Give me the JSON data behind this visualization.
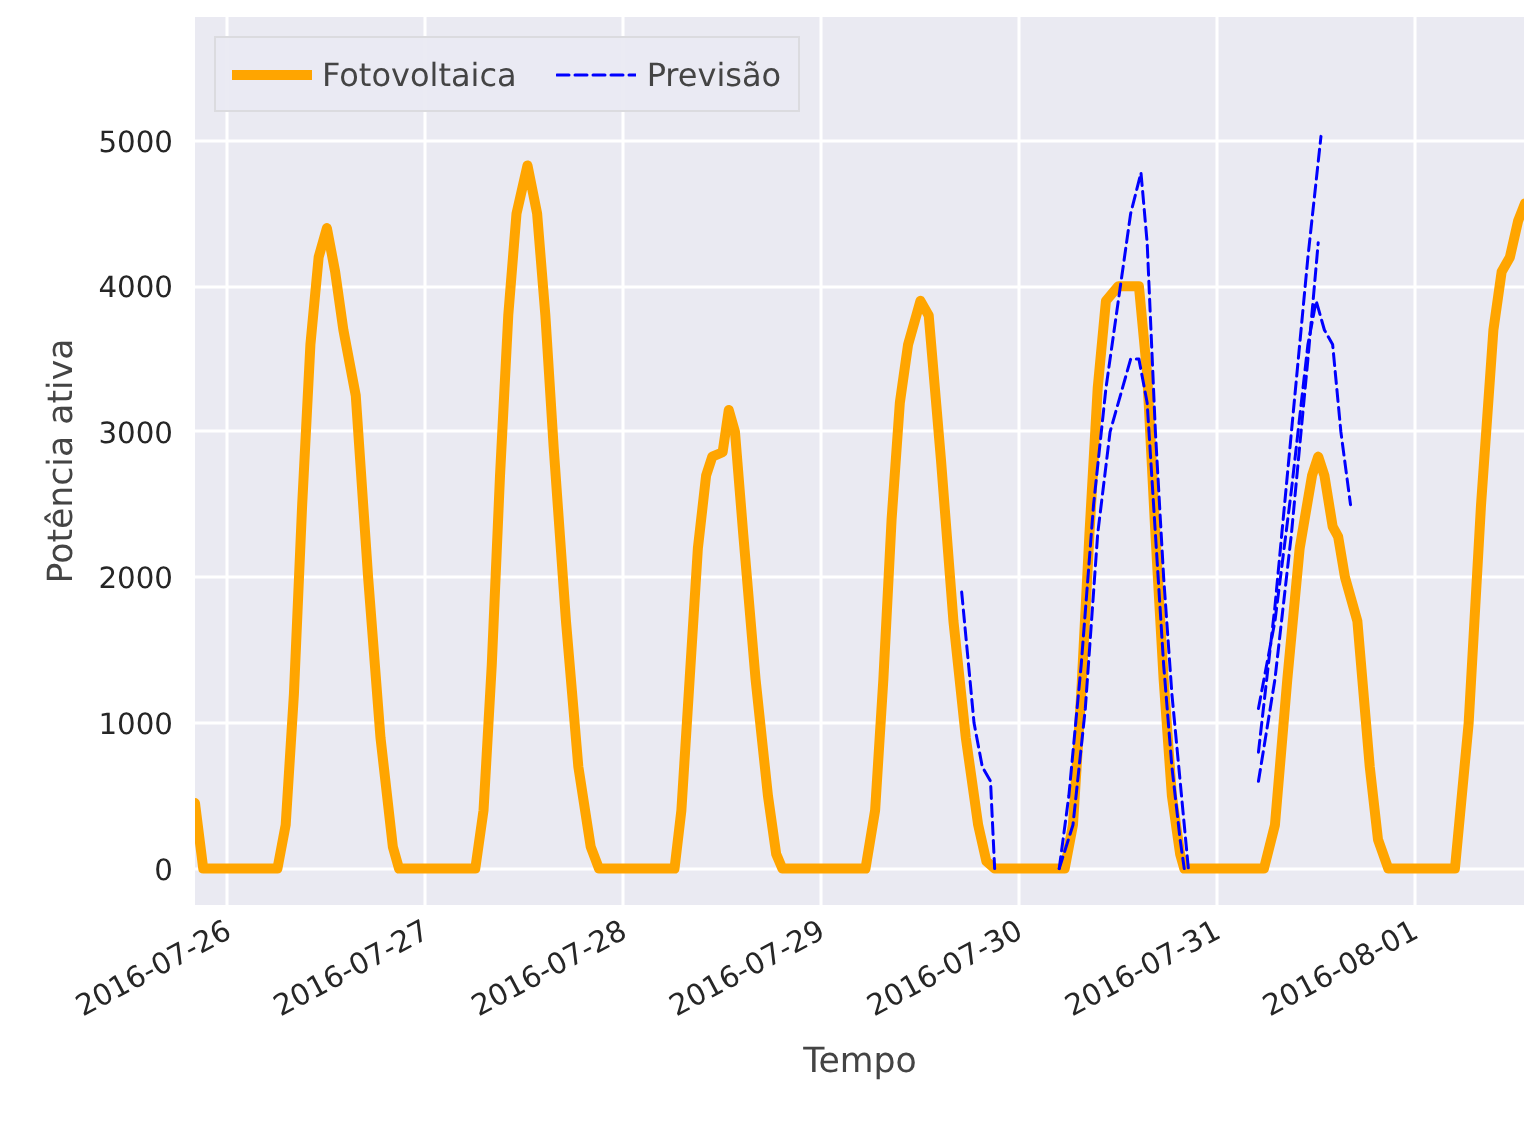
{
  "chart_data": {
    "type": "line",
    "xlabel": "Tempo",
    "ylabel": "Potência ativa",
    "xlim": [
      "2016-07-25T20:00",
      "2016-08-01T13:20"
    ],
    "ylim": [
      -250,
      5850
    ],
    "xticks": [
      "2016-07-26",
      "2016-07-27",
      "2016-07-28",
      "2016-07-29",
      "2016-07-30",
      "2016-07-31",
      "2016-08-01"
    ],
    "yticks": [
      0,
      1000,
      2000,
      3000,
      4000,
      5000
    ],
    "grid": true,
    "legend": "top left",
    "series": [
      {
        "name": "Fotovoltaica",
        "color": "#ffa500",
        "line_style": "solid",
        "x": [
          "2016-07-25T20:00",
          "2016-07-25T21:00",
          "2016-07-26T06:00",
          "2016-07-26T07:00",
          "2016-07-26T08:00",
          "2016-07-26T09:00",
          "2016-07-26T10:00",
          "2016-07-26T11:00",
          "2016-07-26T12:00",
          "2016-07-26T13:00",
          "2016-07-26T14:00",
          "2016-07-26T15:30",
          "2016-07-26T17:00",
          "2016-07-26T18:30",
          "2016-07-26T20:00",
          "2016-07-26T20:45",
          "2016-07-27T06:00",
          "2016-07-27T07:00",
          "2016-07-27T08:00",
          "2016-07-27T09:00",
          "2016-07-27T10:00",
          "2016-07-27T11:00",
          "2016-07-27T12:20",
          "2016-07-27T13:30",
          "2016-07-27T14:30",
          "2016-07-27T15:30",
          "2016-07-27T17:00",
          "2016-07-27T18:30",
          "2016-07-27T20:00",
          "2016-07-27T21:00",
          "2016-07-28T06:10",
          "2016-07-28T07:00",
          "2016-07-28T08:00",
          "2016-07-28T09:00",
          "2016-07-28T10:00",
          "2016-07-28T10:45",
          "2016-07-28T12:00",
          "2016-07-28T12:45",
          "2016-07-28T13:30",
          "2016-07-28T14:30",
          "2016-07-28T16:00",
          "2016-07-28T17:30",
          "2016-07-28T18:30",
          "2016-07-28T19:15",
          "2016-07-29T05:20",
          "2016-07-29T06:30",
          "2016-07-29T07:30",
          "2016-07-29T08:30",
          "2016-07-29T09:30",
          "2016-07-29T10:30",
          "2016-07-29T12:00",
          "2016-07-29T13:00",
          "2016-07-29T14:30",
          "2016-07-29T16:00",
          "2016-07-29T17:30",
          "2016-07-29T19:00",
          "2016-07-29T20:00",
          "2016-07-29T21:00",
          "2016-07-30T05:30",
          "2016-07-30T06:30",
          "2016-07-30T07:30",
          "2016-07-30T08:30",
          "2016-07-30T09:30",
          "2016-07-30T10:30",
          "2016-07-30T12:00",
          "2016-07-30T14:30",
          "2016-07-30T15:30",
          "2016-07-30T16:30",
          "2016-07-30T17:30",
          "2016-07-30T18:30",
          "2016-07-30T19:30",
          "2016-07-30T20:00",
          "2016-07-31T05:40",
          "2016-07-31T07:00",
          "2016-07-31T08:30",
          "2016-07-31T10:00",
          "2016-07-31T11:30",
          "2016-07-31T12:15",
          "2016-07-31T13:00",
          "2016-07-31T14:00",
          "2016-07-31T14:40",
          "2016-07-31T15:30",
          "2016-07-31T17:00",
          "2016-07-31T18:30",
          "2016-07-31T19:30",
          "2016-07-31T20:45",
          "2016-08-01T04:50",
          "2016-08-01T06:30",
          "2016-08-01T08:00",
          "2016-08-01T09:30",
          "2016-08-01T10:30",
          "2016-08-01T11:30",
          "2016-08-01T12:30",
          "2016-08-01T13:20"
        ],
        "values": [
          450,
          0,
          0,
          300,
          1200,
          2500,
          3600,
          4200,
          4400,
          4100,
          3700,
          3250,
          2000,
          900,
          150,
          0,
          0,
          400,
          1400,
          2700,
          3800,
          4500,
          4830,
          4500,
          3800,
          2900,
          1700,
          700,
          150,
          0,
          0,
          400,
          1300,
          2200,
          2700,
          2830,
          2860,
          3150,
          3000,
          2300,
          1300,
          500,
          100,
          0,
          0,
          400,
          1300,
          2400,
          3200,
          3600,
          3900,
          3800,
          2800,
          1700,
          900,
          300,
          50,
          0,
          0,
          300,
          1200,
          2300,
          3300,
          3900,
          4000,
          4000,
          3400,
          2300,
          1300,
          500,
          100,
          0,
          0,
          300,
          1300,
          2200,
          2700,
          2830,
          2700,
          2350,
          2280,
          2000,
          1700,
          700,
          200,
          0,
          0,
          1000,
          2500,
          3700,
          4100,
          4200,
          4450,
          4570
        ]
      },
      {
        "name": "Previsão",
        "color": "#0000ff",
        "line_style": "dashed",
        "x": [
          "2016-07-29T17:00",
          "2016-07-29T18:30",
          "2016-07-29T19:30",
          "2016-07-29T20:30",
          "2016-07-29T21:00"
        ],
        "values": [
          1900,
          1000,
          700,
          600,
          0
        ]
      },
      {
        "color": "#0000ff",
        "line_style": "dashed",
        "x": [
          "2016-07-30T04:50",
          "2016-07-30T06:00",
          "2016-07-30T07:30",
          "2016-07-30T09:00",
          "2016-07-30T10:30",
          "2016-07-30T12:00",
          "2016-07-30T13:30",
          "2016-07-30T14:45",
          "2016-07-30T15:30",
          "2016-07-30T16:30",
          "2016-07-30T17:30",
          "2016-07-30T18:30",
          "2016-07-30T19:30",
          "2016-07-30T20:30"
        ],
        "values": [
          0,
          500,
          1400,
          2500,
          3300,
          3900,
          4500,
          4780,
          4300,
          3000,
          2000,
          1200,
          600,
          0
        ]
      },
      {
        "color": "#0000ff",
        "line_style": "dashed",
        "x": [
          "2016-07-30T04:50",
          "2016-07-30T06:30",
          "2016-07-30T08:00",
          "2016-07-30T09:30",
          "2016-07-30T11:00",
          "2016-07-30T12:30",
          "2016-07-30T13:30",
          "2016-07-30T14:30",
          "2016-07-30T15:30",
          "2016-07-30T16:30",
          "2016-07-30T17:30",
          "2016-07-30T18:30",
          "2016-07-30T19:30",
          "2016-07-30T20:00"
        ],
        "values": [
          0,
          300,
          1100,
          2300,
          3000,
          3300,
          3500,
          3500,
          3200,
          2300,
          1400,
          700,
          200,
          0
        ]
      },
      {
        "color": "#0000ff",
        "line_style": "dashed",
        "x": [
          "2016-07-31T05:00",
          "2016-07-31T07:00",
          "2016-07-31T09:00",
          "2016-07-31T11:00",
          "2016-07-31T12:35"
        ],
        "values": [
          800,
          1800,
          3000,
          4200,
          5030
        ]
      },
      {
        "color": "#0000ff",
        "line_style": "dashed",
        "x": [
          "2016-07-31T05:00",
          "2016-07-31T07:00",
          "2016-07-31T09:00",
          "2016-07-31T11:00",
          "2016-07-31T12:00",
          "2016-07-31T13:00",
          "2016-07-31T14:00",
          "2016-07-31T15:00",
          "2016-07-31T16:10"
        ],
        "values": [
          1100,
          1700,
          2600,
          3600,
          3900,
          3700,
          3600,
          3000,
          2500
        ]
      },
      {
        "color": "#0000ff",
        "line_style": "dashed",
        "x": [
          "2016-07-31T05:00",
          "2016-07-31T07:00",
          "2016-07-31T09:00",
          "2016-07-31T11:00",
          "2016-07-31T12:15"
        ],
        "values": [
          600,
          1300,
          2300,
          3500,
          4300
        ]
      }
    ]
  }
}
